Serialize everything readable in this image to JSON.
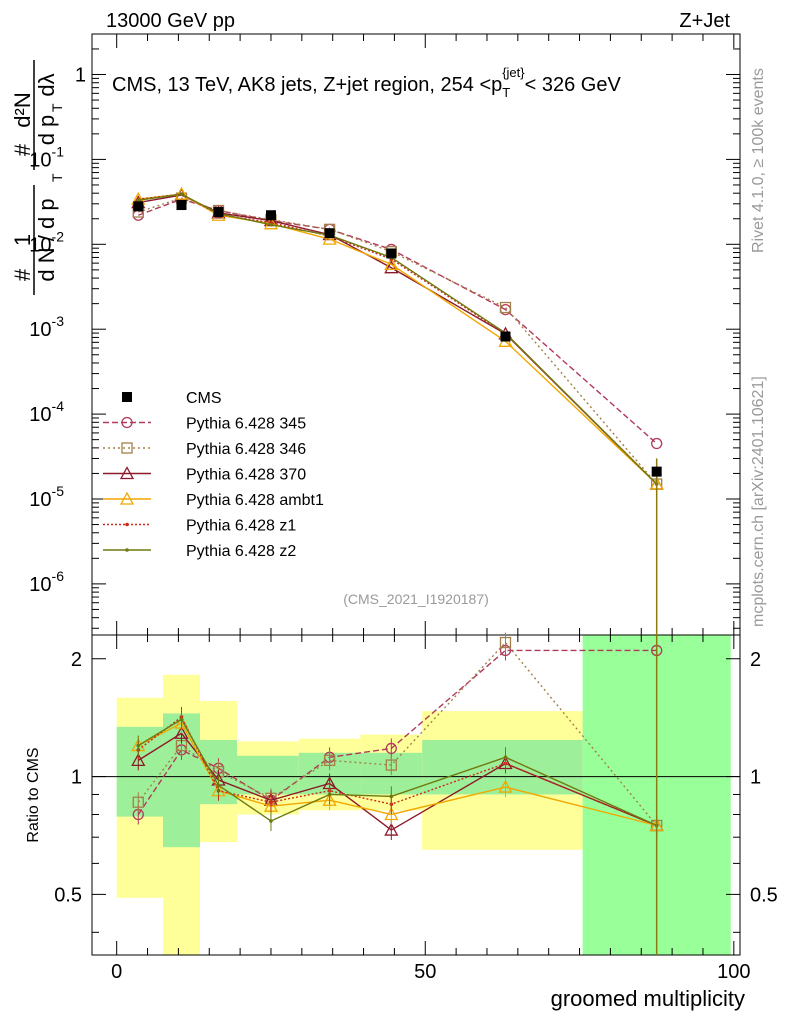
{
  "header": {
    "left_label": "13000 GeV pp",
    "right_label": "Z+Jet"
  },
  "side_labels": {
    "rivet": "Rivet 4.1.0, ≥ 100k events",
    "mcplots": "mcplots.cern.ch [arXiv:2401.10621]"
  },
  "chart_data": {
    "type": "line",
    "title": "CMS, 13 TeV, AK8 jets, Z+jet region, 254 < pT jet < 326 GeV",
    "title_parts": {
      "main": "CMS, 13 TeV, AK8 jets, Z+jet region, 254 <p",
      "sub": "T",
      "sup": "{jet}",
      "end": "< 326 GeV"
    },
    "analysis_tag": "(CMS_2021_I1920187)",
    "xlabel": "groomed multiplicity",
    "ylabel_main": "1/N dN/dpT  d2N/dpT dlambda",
    "ylabel_ratio": "Ratio to CMS",
    "xlim": [
      -4,
      101
    ],
    "ylim_main": [
      2.5e-07,
      3.0
    ],
    "ylim_ratio": [
      0.35,
      2.3
    ],
    "x_ticks": [
      "0",
      "50",
      "100"
    ],
    "y_ticks_main": [
      "10^-6",
      "10^-5",
      "10^-4",
      "10^-3",
      "10^-2",
      "10^-1",
      "1"
    ],
    "y_ticks_ratio": [
      "0.5",
      "1",
      "2"
    ],
    "x": [
      3.5,
      10.5,
      16.5,
      25,
      34.5,
      44.5,
      63,
      87.5
    ],
    "data": {
      "name": "CMS",
      "values": [
        0.028,
        0.029,
        0.024,
        0.022,
        0.0135,
        0.0078,
        0.00082,
        2.1e-05
      ],
      "errors": [
        0.002,
        0.002,
        0.0015,
        0.0015,
        0.001,
        0.0006,
        0.0001,
        1e-05
      ]
    },
    "series": [
      {
        "name": "Pythia 6.428 345",
        "color": "#b03a5a",
        "dash": "6,3",
        "marker": "circle",
        "values": [
          0.022,
          0.034,
          0.025,
          0.019,
          0.015,
          0.0087,
          0.0017,
          4.5e-05
        ],
        "ratio": [
          0.8,
          1.17,
          1.05,
          0.87,
          1.12,
          1.18,
          2.1,
          2.1
        ]
      },
      {
        "name": "Pythia 6.428 346",
        "color": "#a3804a",
        "dash": "2,3",
        "marker": "square",
        "values": [
          0.024,
          0.035,
          0.025,
          0.0195,
          0.015,
          0.0082,
          0.0018,
          1.5e-05
        ],
        "ratio": [
          0.86,
          1.2,
          1.03,
          0.88,
          1.1,
          1.07,
          2.2,
          0.75
        ]
      },
      {
        "name": "Pythia 6.428 370",
        "color": "#8c1a2a",
        "dash": "",
        "marker": "triangle",
        "values": [
          0.031,
          0.038,
          0.0235,
          0.019,
          0.013,
          0.0053,
          0.00088,
          1.5e-05
        ],
        "ratio": [
          1.1,
          1.29,
          0.98,
          0.87,
          0.96,
          0.73,
          1.08,
          0.75
        ]
      },
      {
        "name": "Pythia 6.428 ambt1",
        "color": "#f0a800",
        "dash": "",
        "marker": "triangle",
        "values": [
          0.034,
          0.039,
          0.022,
          0.0175,
          0.0115,
          0.0058,
          0.00072,
          1.5e-05
        ],
        "ratio": [
          1.2,
          1.37,
          0.92,
          0.84,
          0.87,
          0.8,
          0.94,
          0.75
        ]
      },
      {
        "name": "Pythia 6.428 z1",
        "color": "#cc2a1a",
        "dash": "2,2",
        "marker": "dot",
        "values": [
          0.034,
          0.039,
          0.0225,
          0.018,
          0.0125,
          0.0067,
          0.00088,
          1.5e-05
        ],
        "ratio": [
          1.17,
          1.42,
          0.92,
          0.86,
          0.92,
          0.85,
          1.08,
          0.75
        ]
      },
      {
        "name": "Pythia 6.428 z2",
        "color": "#6e7a10",
        "dash": "",
        "marker": "dot",
        "values": [
          0.033,
          0.039,
          0.023,
          0.017,
          0.0128,
          0.007,
          0.0009,
          1.5e-05
        ],
        "ratio": [
          1.2,
          1.4,
          0.95,
          0.77,
          0.9,
          0.89,
          1.12,
          0.75
        ]
      }
    ],
    "ratio_bands": {
      "edges": [
        0,
        7.5,
        13.5,
        19.5,
        29.5,
        39.5,
        49.5,
        75.5,
        99.5
      ],
      "yellow": [
        [
          0.49,
          1.59
        ],
        [
          0.35,
          1.82
        ],
        [
          0.68,
          1.56
        ],
        [
          0.8,
          1.23
        ],
        [
          0.82,
          1.25
        ],
        [
          0.82,
          1.28
        ],
        [
          0.65,
          1.47
        ],
        [
          0.35,
          2.3
        ]
      ],
      "green": [
        [
          0.79,
          1.34
        ],
        [
          0.66,
          1.45
        ],
        [
          0.85,
          1.24
        ],
        [
          0.9,
          1.13
        ],
        [
          0.9,
          1.15
        ],
        [
          0.9,
          1.15
        ],
        [
          0.9,
          1.24
        ],
        [
          0.35,
          2.3
        ]
      ],
      "green_only_last": true
    }
  }
}
